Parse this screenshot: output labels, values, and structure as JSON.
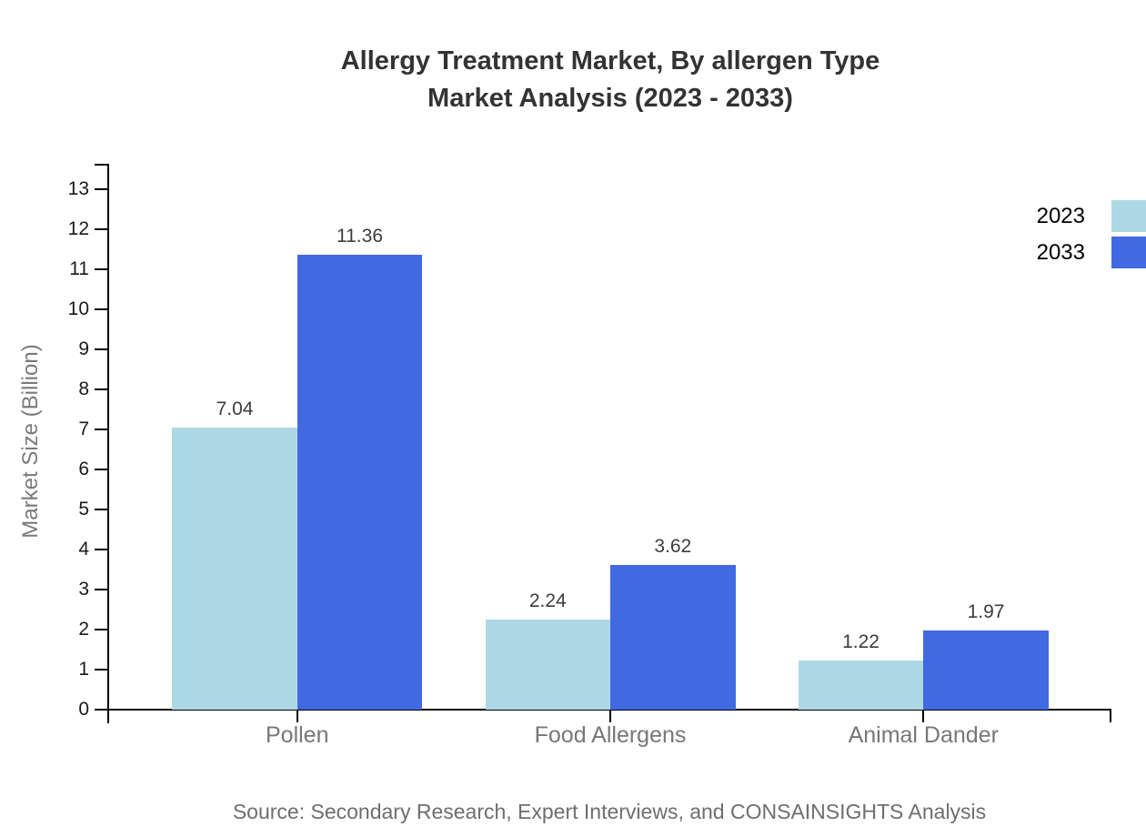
{
  "title": {
    "line1": "Allergy Treatment Market, By allergen Type",
    "line2": "Market Analysis (2023 - 2033)"
  },
  "source": "Source: Secondary Research, Expert Interviews, and CONSAINSIGHTS Analysis",
  "colors": {
    "series_2023": "#ADD8E6",
    "series_2033": "#4169E1",
    "title_text": "#333333",
    "axis_line": "#000000",
    "ytick_label": "#1a1a1a",
    "category_label": "#777777",
    "value_label": "#3c3c3c",
    "axis_title": "#7a7a7a",
    "legend_text": "#000000",
    "source_text": "#6e6e6e",
    "background": "#ffffff"
  },
  "legend": {
    "items": [
      {
        "label": "2023"
      },
      {
        "label": "2033"
      }
    ]
  },
  "chart_data": {
    "type": "bar",
    "title": "Allergy Treatment Market, By allergen Type Market Analysis (2023 - 2033)",
    "categories": [
      "Pollen",
      "Food Allergens",
      "Animal Dander"
    ],
    "series": [
      {
        "name": "2023",
        "color": "#ADD8E6",
        "values": [
          7.04,
          2.24,
          1.22
        ]
      },
      {
        "name": "2033",
        "color": "#4169E1",
        "values": [
          11.36,
          3.62,
          1.97
        ]
      }
    ],
    "xlabel": "",
    "ylabel": "Market Size (Billion)",
    "ylim": [
      0,
      13
    ],
    "ytick_step": 1,
    "grid": false,
    "legend_position": "top-right",
    "value_labels_shown": true,
    "value_label_format": "0.00"
  }
}
